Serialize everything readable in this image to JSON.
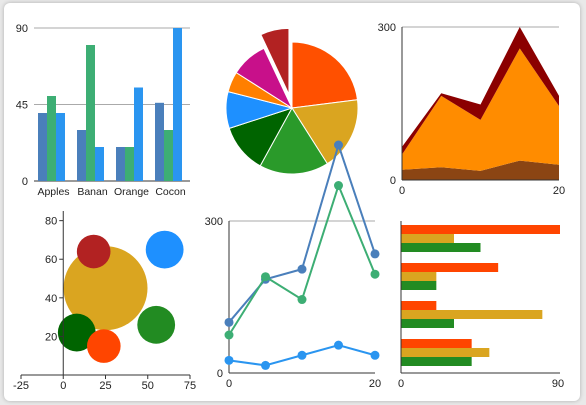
{
  "colors": {
    "blue_dark": "#4a7fbb",
    "green": "#3dae74",
    "blue": "#2a95f0",
    "dark_red": "#8b0000",
    "orange": "#ff8c00",
    "brown": "#8b4513",
    "gridline": "#aaaaaa"
  },
  "chart_data": [
    {
      "type": "bar",
      "id": "columns",
      "categories": [
        "Apples",
        "Banan",
        "Orange",
        "Cocon"
      ],
      "series": [
        {
          "values": [
            40,
            30,
            20,
            46
          ],
          "color": "#4a7fbb"
        },
        {
          "values": [
            50,
            80,
            20,
            30
          ],
          "color": "#3dae74"
        },
        {
          "values": [
            40,
            20,
            55,
            90
          ],
          "color": "#2a95f0"
        }
      ],
      "yticks": [
        "0",
        "45",
        "90"
      ],
      "ylim": [
        0,
        90
      ],
      "grid": true
    },
    {
      "type": "pie",
      "id": "pie",
      "exploded_index": 7,
      "slices": [
        {
          "value": 23,
          "color": "#ff5000"
        },
        {
          "value": 18,
          "color": "#daa520"
        },
        {
          "value": 17,
          "color": "#2a9a2a"
        },
        {
          "value": 12,
          "color": "#006400"
        },
        {
          "value": 9,
          "color": "#1e90ff"
        },
        {
          "value": 5,
          "color": "#ff7f00"
        },
        {
          "value": 9,
          "color": "#c8108a"
        },
        {
          "value": 7,
          "color": "#b22222"
        }
      ]
    },
    {
      "type": "area",
      "id": "stacked-area",
      "x": [
        0,
        5,
        10,
        15,
        20
      ],
      "series": [
        {
          "values": [
            20,
            25,
            18,
            38,
            30
          ],
          "color": "#8b4513"
        },
        {
          "values": [
            30,
            140,
            100,
            220,
            115
          ],
          "color": "#ff8c00"
        },
        {
          "values": [
            15,
            5,
            30,
            42,
            20
          ],
          "color": "#8b0000"
        }
      ],
      "xticks": [
        "0",
        "20"
      ],
      "yticks": [
        "0",
        "300"
      ],
      "xlim": [
        0,
        20
      ],
      "ylim": [
        0,
        300
      ],
      "grid": true
    },
    {
      "type": "scatter",
      "id": "bubbles",
      "points": [
        {
          "x": 25,
          "y": 45,
          "size": 20,
          "color": "#daa520"
        },
        {
          "x": 18,
          "y": 64,
          "size": 8,
          "color": "#b22222"
        },
        {
          "x": 60,
          "y": 65,
          "size": 9,
          "color": "#1e90ff"
        },
        {
          "x": 8,
          "y": 22,
          "size": 9,
          "color": "#006400"
        },
        {
          "x": 55,
          "y": 26,
          "size": 9,
          "color": "#228b22"
        },
        {
          "x": 24,
          "y": 15,
          "size": 8,
          "color": "#ff4500"
        }
      ],
      "xticks": [
        "-25",
        "0",
        "25",
        "50",
        "75"
      ],
      "yticks": [
        "20",
        "40",
        "60",
        "80"
      ],
      "xlim": [
        -25,
        75
      ],
      "ylim": [
        0,
        85
      ]
    },
    {
      "type": "line",
      "id": "lines",
      "x": [
        0,
        5,
        10,
        15,
        20
      ],
      "series": [
        {
          "values": [
            100,
            185,
            205,
            450,
            235
          ],
          "color": "#4a7fbb"
        },
        {
          "values": [
            75,
            190,
            145,
            370,
            195
          ],
          "color": "#3dae74"
        },
        {
          "values": [
            25,
            15,
            35,
            55,
            35
          ],
          "color": "#2a95f0"
        }
      ],
      "xticks": [
        "0",
        "20"
      ],
      "yticks": [
        "0",
        "300"
      ],
      "xlim": [
        0,
        20
      ],
      "ylim": [
        0,
        450
      ],
      "grid": true
    },
    {
      "type": "bar",
      "id": "horizontal-bars",
      "orientation": "horizontal",
      "groups": [
        [
          {
            "value": 90,
            "color": "#ff4500"
          },
          {
            "value": 30,
            "color": "#daa520"
          },
          {
            "value": 45,
            "color": "#228b22"
          }
        ],
        [
          {
            "value": 55,
            "color": "#ff4500"
          },
          {
            "value": 20,
            "color": "#daa520"
          },
          {
            "value": 20,
            "color": "#228b22"
          }
        ],
        [
          {
            "value": 20,
            "color": "#ff4500"
          },
          {
            "value": 80,
            "color": "#daa520"
          },
          {
            "value": 30,
            "color": "#228b22"
          }
        ],
        [
          {
            "value": 40,
            "color": "#ff4500"
          },
          {
            "value": 50,
            "color": "#daa520"
          },
          {
            "value": 40,
            "color": "#228b22"
          }
        ]
      ],
      "xticks": [
        "0",
        "90"
      ],
      "xlim": [
        0,
        90
      ]
    }
  ]
}
